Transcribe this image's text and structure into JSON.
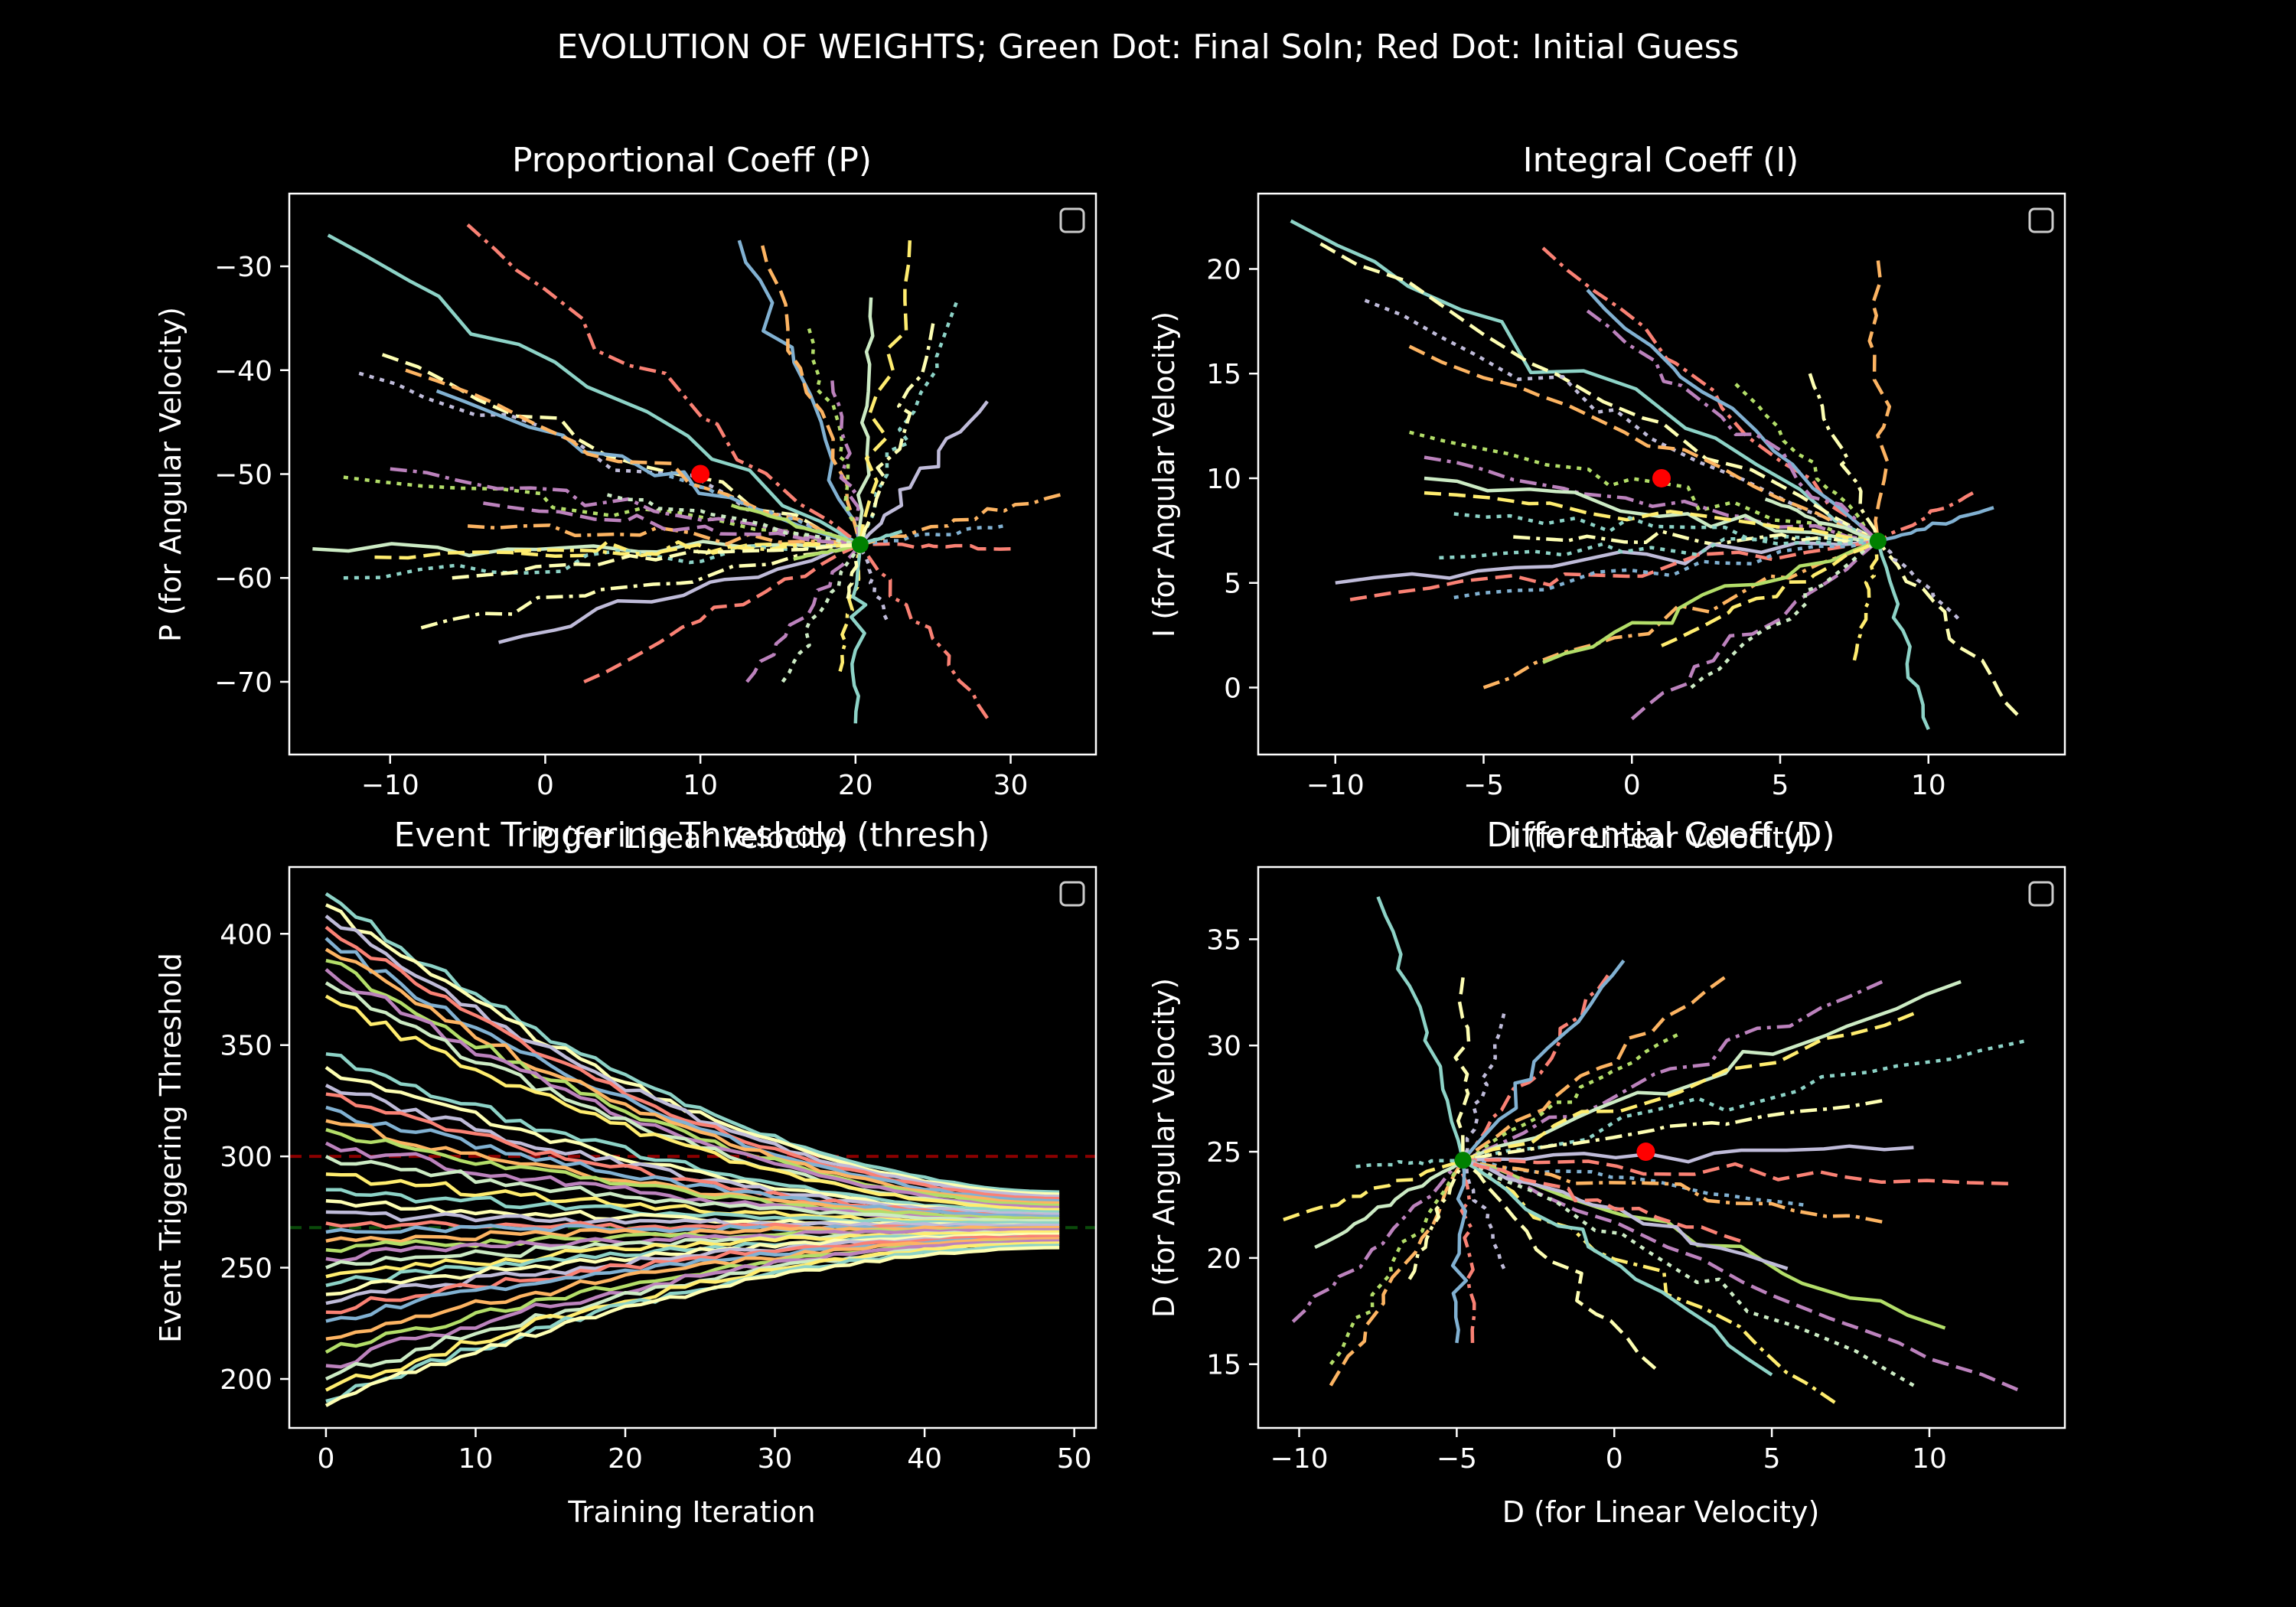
{
  "suptitle": "EVOLUTION OF WEIGHTS; Green Dot: Final Soln; Red Dot: Initial Guess",
  "palette": [
    "#8dd3c7",
    "#feffb3",
    "#bfbbd9",
    "#fa8174",
    "#81b1d2",
    "#fdb462",
    "#b3de69",
    "#bc82bd",
    "#ccebc4",
    "#ffed6f"
  ],
  "chart_data": [
    {
      "id": "p",
      "type": "line",
      "title": "Proportional Coeff (P)",
      "xlabel": "P (for Linear Velocity)",
      "ylabel": "P (for Angular Velocity)",
      "xlim": [
        -16.5,
        35.5
      ],
      "ylim": [
        -77,
        -23
      ],
      "xticks": [
        -10,
        0,
        10,
        20,
        30
      ],
      "yticks": [
        -30,
        -40,
        -50,
        -60,
        -70
      ],
      "xtick_labels": [
        "−10",
        "0",
        "10",
        "20",
        "30"
      ],
      "ytick_labels": [
        "−30",
        "−40",
        "−50",
        "−60",
        "−70"
      ],
      "center": [
        20.3,
        -56.8
      ],
      "initial_guess": [
        10,
        -50
      ],
      "series": [
        {
          "start": [
            -14,
            -27
          ]
        },
        {
          "start": [
            -10.5,
            -38.5
          ]
        },
        {
          "start": [
            -12,
            -40.3
          ]
        },
        {
          "start": [
            -5,
            -26
          ]
        },
        {
          "start": [
            -7,
            -42
          ]
        },
        {
          "start": [
            -9,
            -40
          ]
        },
        {
          "start": [
            -13,
            -50.3
          ]
        },
        {
          "start": [
            -10,
            -49.5
          ]
        },
        {
          "start": [
            -15,
            -57.2
          ]
        },
        {
          "start": [
            -11,
            -58
          ]
        },
        {
          "start": [
            -13,
            -60
          ]
        },
        {
          "start": [
            -8,
            -64.8
          ]
        },
        {
          "start": [
            -3,
            -66.2
          ]
        },
        {
          "start": [
            2.5,
            -70
          ]
        },
        {
          "start": [
            8,
            -50.2
          ]
        },
        {
          "start": [
            -5,
            -55
          ]
        },
        {
          "start": [
            12,
            -53
          ]
        },
        {
          "start": [
            13,
            -70
          ]
        },
        {
          "start": [
            15.3,
            -70
          ]
        },
        {
          "start": [
            19,
            -69
          ]
        },
        {
          "start": [
            20,
            -74
          ]
        },
        {
          "start": [
            19.5,
            -62
          ]
        },
        {
          "start": [
            22,
            -64
          ]
        },
        {
          "start": [
            28.5,
            -73.5
          ]
        },
        {
          "start": [
            12.5,
            -27.5
          ]
        },
        {
          "start": [
            14,
            -28
          ]
        },
        {
          "start": [
            17,
            -36
          ]
        },
        {
          "start": [
            18.5,
            -41
          ]
        },
        {
          "start": [
            21,
            -33
          ]
        },
        {
          "start": [
            23.5,
            -27.5
          ]
        },
        {
          "start": [
            26.5,
            -33.5
          ]
        },
        {
          "start": [
            25,
            -35.5
          ]
        },
        {
          "start": [
            28.5,
            -43
          ]
        },
        {
          "start": [
            30,
            -57.2
          ]
        },
        {
          "start": [
            29.5,
            -55
          ]
        },
        {
          "start": [
            33.2,
            -52
          ]
        },
        {
          "start": [
            16,
            -58.2
          ]
        },
        {
          "start": [
            -4,
            -52.8
          ]
        },
        {
          "start": [
            4,
            -52
          ]
        },
        {
          "start": [
            -2,
            -57.4
          ]
        },
        {
          "start": [
            23,
            -55.5
          ]
        },
        {
          "start": [
            -6,
            -60
          ]
        }
      ]
    },
    {
      "id": "i",
      "type": "line",
      "title": "Integral Coeff (I)",
      "xlabel": "I (for Linear Velocity)",
      "ylabel": "I (for Angular Velocity)",
      "xlim": [
        -12.6,
        14.6
      ],
      "ylim": [
        -3.2,
        23.6
      ],
      "xticks": [
        -10,
        -5,
        0,
        5,
        10
      ],
      "yticks": [
        20,
        15,
        10,
        5,
        0
      ],
      "xtick_labels": [
        "−10",
        "−5",
        "0",
        "5",
        "10"
      ],
      "ytick_labels": [
        "20",
        "15",
        "10",
        "5",
        "0"
      ],
      "center": [
        8.3,
        7
      ],
      "initial_guess": [
        1,
        10
      ],
      "series": [
        {
          "start": [
            -11.5,
            22.3
          ]
        },
        {
          "start": [
            -10.5,
            21.2
          ]
        },
        {
          "start": [
            -9,
            18.5
          ]
        },
        {
          "start": [
            -3,
            21
          ]
        },
        {
          "start": [
            -1.5,
            19
          ]
        },
        {
          "start": [
            -7.5,
            16.3
          ]
        },
        {
          "start": [
            -7.5,
            12.2
          ]
        },
        {
          "start": [
            -7,
            11
          ]
        },
        {
          "start": [
            -7,
            10
          ]
        },
        {
          "start": [
            -7,
            9.3
          ]
        },
        {
          "start": [
            -6,
            8.3
          ]
        },
        {
          "start": [
            -4,
            7.2
          ]
        },
        {
          "start": [
            -10,
            5
          ]
        },
        {
          "start": [
            -9.5,
            4.2
          ]
        },
        {
          "start": [
            -6,
            4.3
          ]
        },
        {
          "start": [
            -5,
            0
          ]
        },
        {
          "start": [
            -3,
            1.2
          ]
        },
        {
          "start": [
            0,
            -1.5
          ]
        },
        {
          "start": [
            2,
            0
          ]
        },
        {
          "start": [
            7.5,
            1.3
          ]
        },
        {
          "start": [
            10,
            -2
          ]
        },
        {
          "start": [
            13,
            -1.3
          ]
        },
        {
          "start": [
            11,
            3.3
          ]
        },
        {
          "start": [
            11.5,
            9.3
          ]
        },
        {
          "start": [
            12.2,
            8.6
          ]
        },
        {
          "start": [
            8.3,
            20.4
          ]
        },
        {
          "start": [
            3.5,
            14.5
          ]
        },
        {
          "start": [
            -1.5,
            18
          ]
        },
        {
          "start": [
            4.5,
            9
          ]
        },
        {
          "start": [
            1,
            2
          ]
        },
        {
          "start": [
            -6.5,
            6.2
          ]
        },
        {
          "start": [
            6,
            15
          ]
        }
      ]
    },
    {
      "id": "thresh",
      "type": "line",
      "title": "Event Triggering Threshold (thresh)",
      "xlabel": "Training Iteration",
      "ylabel": "Event Triggering Threshold",
      "xlim": [
        -2.45,
        51.45
      ],
      "ylim": [
        178,
        430
      ],
      "xticks": [
        0,
        10,
        20,
        30,
        40,
        50
      ],
      "yticks": [
        400,
        350,
        300,
        250,
        200
      ],
      "xtick_labels": [
        "0",
        "10",
        "20",
        "30",
        "40",
        "50"
      ],
      "ytick_labels": [
        "400",
        "350",
        "300",
        "250",
        "200"
      ],
      "n_iterations": 50,
      "reference_lines": [
        {
          "y": 300,
          "color": "#8b0000"
        },
        {
          "y": 268,
          "color": "#0a4a0a"
        }
      ],
      "series": [
        {
          "start": 418,
          "end": 284
        },
        {
          "start": 413,
          "end": 283
        },
        {
          "start": 408,
          "end": 282
        },
        {
          "start": 403,
          "end": 281
        },
        {
          "start": 398,
          "end": 280
        },
        {
          "start": 393,
          "end": 279
        },
        {
          "start": 388,
          "end": 278
        },
        {
          "start": 384,
          "end": 277
        },
        {
          "start": 378,
          "end": 276
        },
        {
          "start": 372,
          "end": 276
        },
        {
          "start": 346,
          "end": 275
        },
        {
          "start": 340,
          "end": 274
        },
        {
          "start": 332,
          "end": 274
        },
        {
          "start": 328,
          "end": 273
        },
        {
          "start": 322,
          "end": 273
        },
        {
          "start": 316,
          "end": 272
        },
        {
          "start": 312,
          "end": 272
        },
        {
          "start": 306,
          "end": 271
        },
        {
          "start": 300,
          "end": 271
        },
        {
          "start": 292,
          "end": 270
        },
        {
          "start": 285,
          "end": 270
        },
        {
          "start": 280,
          "end": 269
        },
        {
          "start": 275,
          "end": 269
        },
        {
          "start": 270,
          "end": 268
        },
        {
          "start": 266,
          "end": 268
        },
        {
          "start": 262,
          "end": 268
        },
        {
          "start": 258,
          "end": 267
        },
        {
          "start": 254,
          "end": 267
        },
        {
          "start": 250,
          "end": 266
        },
        {
          "start": 246,
          "end": 266
        },
        {
          "start": 242,
          "end": 265
        },
        {
          "start": 238,
          "end": 265
        },
        {
          "start": 234,
          "end": 264
        },
        {
          "start": 230,
          "end": 264
        },
        {
          "start": 226,
          "end": 263
        },
        {
          "start": 218,
          "end": 263
        },
        {
          "start": 212,
          "end": 262
        },
        {
          "start": 206,
          "end": 262
        },
        {
          "start": 200,
          "end": 261
        },
        {
          "start": 195,
          "end": 261
        },
        {
          "start": 190,
          "end": 260
        },
        {
          "start": 188,
          "end": 259
        }
      ]
    },
    {
      "id": "d",
      "type": "line",
      "title": "Differential Coeff (D)",
      "xlabel": "D (for Linear Velocity)",
      "ylabel": "D (for Angular Velocity)",
      "xlim": [
        -11.3,
        14.3
      ],
      "ylim": [
        12,
        38.4
      ],
      "xticks": [
        -10,
        -5,
        0,
        5,
        10
      ],
      "yticks": [
        35,
        30,
        25,
        20,
        15
      ],
      "xtick_labels": [
        "−10",
        "−5",
        "0",
        "5",
        "10"
      ],
      "ytick_labels": [
        "35",
        "30",
        "25",
        "20",
        "15"
      ],
      "center": [
        -4.8,
        24.6
      ],
      "initial_guess": [
        1,
        25
      ],
      "series": [
        {
          "start": [
            -7.5,
            37
          ]
        },
        {
          "start": [
            -4.8,
            33.2
          ]
        },
        {
          "start": [
            -3.5,
            31.5
          ]
        },
        {
          "start": [
            -0.2,
            33.3
          ]
        },
        {
          "start": [
            0.3,
            34
          ]
        },
        {
          "start": [
            3.5,
            33.2
          ]
        },
        {
          "start": [
            2,
            30.5
          ]
        },
        {
          "start": [
            8.5,
            33
          ]
        },
        {
          "start": [
            11,
            33
          ]
        },
        {
          "start": [
            9.5,
            31.5
          ]
        },
        {
          "start": [
            13,
            30.2
          ]
        },
        {
          "start": [
            8.5,
            27.4
          ]
        },
        {
          "start": [
            9.5,
            25.2
          ]
        },
        {
          "start": [
            12.5,
            23.5
          ]
        },
        {
          "start": [
            6,
            22.5
          ]
        },
        {
          "start": [
            8.5,
            21.7
          ]
        },
        {
          "start": [
            10.5,
            16.7
          ]
        },
        {
          "start": [
            12.8,
            13.8
          ]
        },
        {
          "start": [
            9.5,
            14
          ]
        },
        {
          "start": [
            7,
            13.2
          ]
        },
        {
          "start": [
            5,
            14.5
          ]
        },
        {
          "start": [
            1.3,
            14.8
          ]
        },
        {
          "start": [
            -3.5,
            19.5
          ]
        },
        {
          "start": [
            -4.5,
            16
          ]
        },
        {
          "start": [
            -5,
            16
          ]
        },
        {
          "start": [
            -9,
            14
          ]
        },
        {
          "start": [
            -9,
            15
          ]
        },
        {
          "start": [
            -10.2,
            17
          ]
        },
        {
          "start": [
            -9.5,
            20.5
          ]
        },
        {
          "start": [
            -10.5,
            21.8
          ]
        },
        {
          "start": [
            -8.2,
            24.3
          ]
        },
        {
          "start": [
            -6.5,
            19
          ]
        },
        {
          "start": [
            5.5,
            19.5
          ]
        },
        {
          "start": [
            4,
            20.8
          ]
        }
      ]
    }
  ]
}
